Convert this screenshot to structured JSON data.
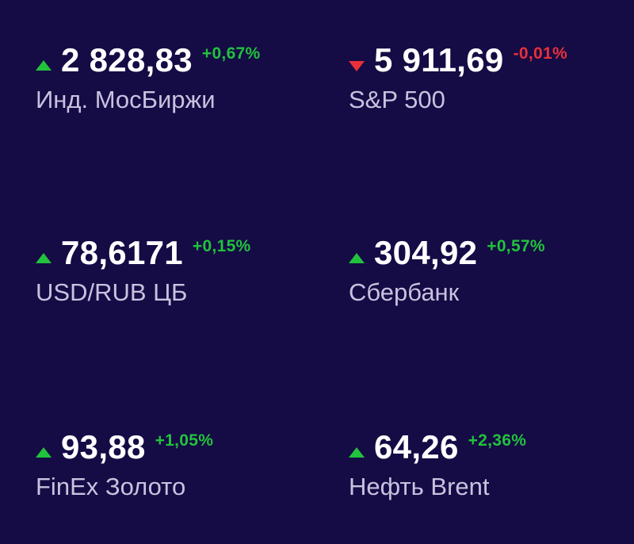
{
  "items": [
    {
      "value": "2 828,83",
      "change": "+0,67%",
      "label": "Инд. МосБиржи"
    },
    {
      "value": "5 911,69",
      "change": "-0,01%",
      "label": "S&P 500"
    },
    {
      "value": "78,6171",
      "change": "+0,15%",
      "label": "USD/RUB ЦБ"
    },
    {
      "value": "304,92",
      "change": "+0,57%",
      "label": "Сбербанк"
    },
    {
      "value": "93,88",
      "change": "+1,05%",
      "label": "FinEx Золото"
    },
    {
      "value": "64,26",
      "change": "+2,36%",
      "label": "Нефть Brent"
    }
  ]
}
